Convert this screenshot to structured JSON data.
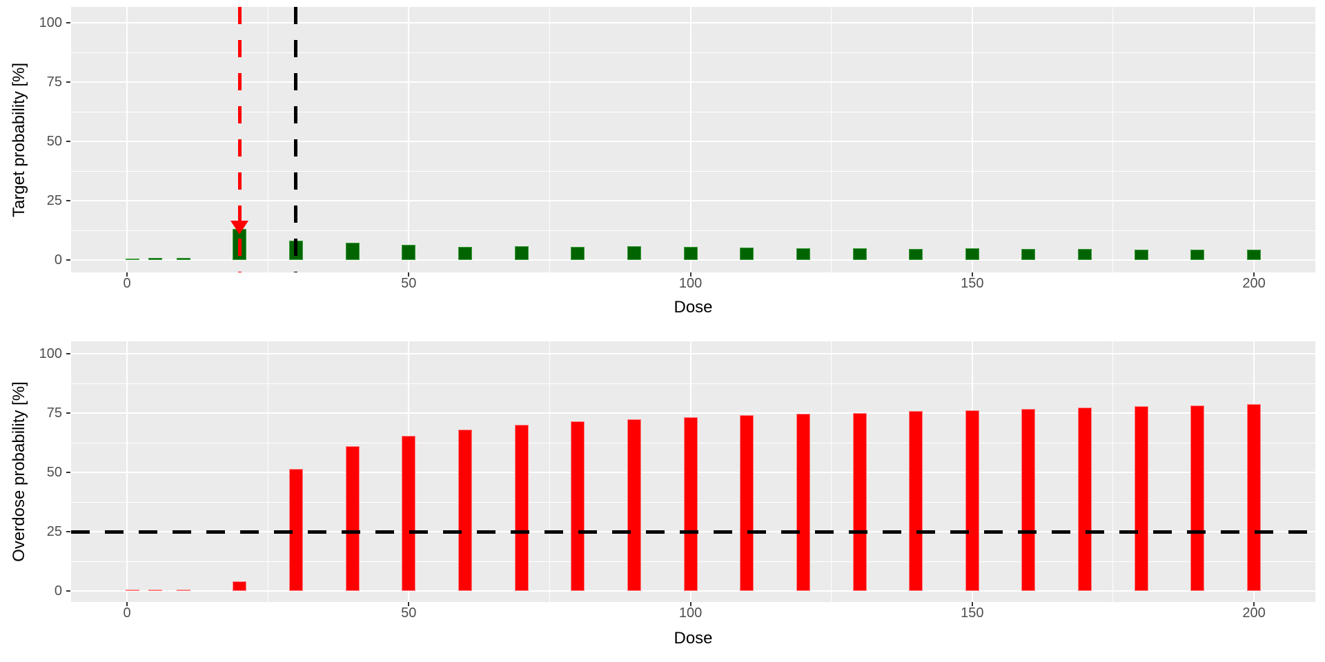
{
  "page": {
    "background": "#ffffff",
    "description": "Two stacked ggplot-style bar charts: dose-toxicity target probability (green) and overdose probability (red) versus dose"
  },
  "style": {
    "panel_bg": "#ebebeb",
    "grid_color": "#ffffff",
    "axis_text_color": "#4d4d4d",
    "axis_title_color": "#000000",
    "tick_color": "#333333"
  },
  "chart_data": [
    {
      "type": "bar",
      "title": "",
      "xlabel": "Dose",
      "ylabel": "Target probability [%]",
      "x": [
        1,
        5,
        10,
        20,
        30,
        40,
        50,
        60,
        70,
        80,
        90,
        100,
        110,
        120,
        130,
        140,
        150,
        160,
        170,
        180,
        190,
        200
      ],
      "values": [
        0.7,
        0.8,
        1.0,
        13,
        8,
        7.3,
        6.3,
        5.5,
        5.7,
        5.5,
        5.8,
        5.5,
        5.3,
        5.0,
        5.0,
        4.7,
        5.0,
        4.6,
        4.6,
        4.5,
        4.4,
        4.4
      ],
      "bar_color": "#006400",
      "bar_edge_color": "#3d9c3d",
      "xlim": [
        -10,
        211
      ],
      "ylim": [
        0,
        100
      ],
      "xticks": [
        "0",
        "50",
        "100",
        "150",
        "200"
      ],
      "xtick_values": [
        0,
        50,
        100,
        150,
        200
      ],
      "yticks": [
        "0",
        "25",
        "50",
        "75",
        "100"
      ],
      "ytick_values": [
        0,
        25,
        50,
        75,
        100
      ],
      "xminor_values": [
        25,
        75,
        125,
        175
      ],
      "yminor_values": [
        12.5,
        37.5,
        62.5,
        87.5
      ],
      "grid": true,
      "legend_position": "none",
      "ref_lines": [
        {
          "orientation": "vertical",
          "at": 20,
          "color": "#ff0000",
          "style": "dashed",
          "meaning": "recommended-dose-line"
        },
        {
          "orientation": "vertical",
          "at": 30,
          "color": "#000000",
          "style": "dashed",
          "meaning": "max-admissible-dose-line"
        }
      ],
      "marker": {
        "shape": "triangle-down",
        "x": 20,
        "y": 13.8,
        "color": "#ff0000",
        "meaning": "dose-estimate-marker"
      }
    },
    {
      "type": "bar",
      "title": "",
      "xlabel": "Dose",
      "ylabel": "Overdose probability [%]",
      "x": [
        1,
        5,
        10,
        20,
        30,
        40,
        50,
        60,
        70,
        80,
        90,
        100,
        110,
        120,
        130,
        140,
        150,
        160,
        170,
        180,
        190,
        200
      ],
      "values": [
        0.4,
        0.4,
        0.5,
        4,
        51.5,
        61,
        65.5,
        68,
        70,
        71.5,
        72.3,
        73.2,
        74.2,
        74.8,
        75.0,
        75.8,
        76.2,
        76.8,
        77.2,
        77.8,
        78.2,
        78.7
      ],
      "bar_color": "#ff0000",
      "bar_edge_color": "#ff8080",
      "xlim": [
        -10,
        211
      ],
      "ylim": [
        0,
        100
      ],
      "xticks": [
        "0",
        "50",
        "100",
        "150",
        "200"
      ],
      "xtick_values": [
        0,
        50,
        100,
        150,
        200
      ],
      "yticks": [
        "0",
        "25",
        "50",
        "75",
        "100"
      ],
      "ytick_values": [
        0,
        25,
        50,
        75,
        100
      ],
      "xminor_values": [
        25,
        75,
        125,
        175
      ],
      "yminor_values": [
        12.5,
        37.5,
        62.5,
        87.5
      ],
      "grid": true,
      "legend_position": "none",
      "ref_lines": [
        {
          "orientation": "horizontal",
          "at": 25,
          "color": "#000000",
          "style": "dashed",
          "meaning": "overdose-threshold-line"
        }
      ],
      "marker": null
    }
  ]
}
